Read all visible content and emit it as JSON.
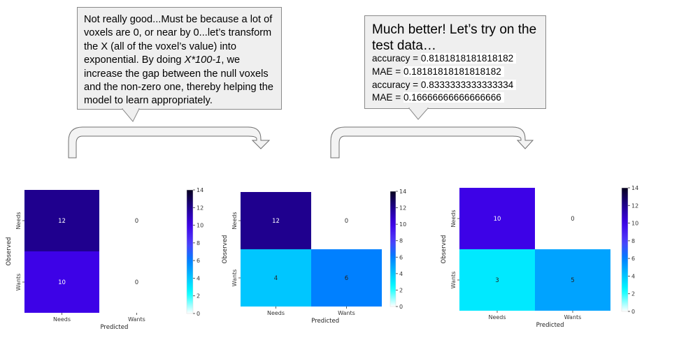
{
  "notes": {
    "note1": {
      "before": "Not really good...Must be because a lot of voxels are 0, or near by 0...let’s transform the X (all of the voxel’s value) into exponential. By doing ",
      "formula": "X*100-1",
      "after": ",  we increase the gap between the null voxels and the non-zero one, thereby helping the model to learn appropriately."
    },
    "note2": {
      "heading": "Much better! Let’s try on the test data…",
      "metrics": [
        {
          "label": "accuracy = ",
          "value": "0.8181818181818182"
        },
        {
          "label": "MAE = ",
          "value": "0.18181818181818182"
        },
        {
          "label": "accuracy = ",
          "value": "0.8333333333333334"
        },
        {
          "label": "MAE = ",
          "value": "0.16666666666666666"
        }
      ]
    }
  },
  "colors": {
    "callout_fill": "#efefef",
    "callout_border": "#8a8a8a",
    "arrow_fill": "#f3f3f3",
    "arrow_stroke": "#707070"
  },
  "chart_data": [
    {
      "type": "heatmap",
      "rows": [
        "Needs",
        "Wants"
      ],
      "cols": [
        "Needs",
        "Wants"
      ],
      "values": [
        [
          12,
          0
        ],
        [
          10,
          0
        ]
      ],
      "show_zero_fill": false,
      "xlabel": "Predicted",
      "ylabel": "Observed",
      "colorbar": {
        "min": 0,
        "max": 14,
        "ticks": [
          0,
          2,
          4,
          6,
          8,
          10,
          12,
          14
        ]
      }
    },
    {
      "type": "heatmap",
      "rows": [
        "Needs",
        "Wants"
      ],
      "cols": [
        "Needs",
        "Wants"
      ],
      "values": [
        [
          12,
          0
        ],
        [
          4,
          6
        ]
      ],
      "show_zero_fill": false,
      "xlabel": "Predicted",
      "ylabel": "Observed",
      "colorbar": {
        "min": 0,
        "max": 14,
        "ticks": [
          0,
          2,
          4,
          6,
          8,
          10,
          12,
          14
        ]
      }
    },
    {
      "type": "heatmap",
      "rows": [
        "Needs",
        "Wants"
      ],
      "cols": [
        "Needs",
        "Wants"
      ],
      "values": [
        [
          10,
          0
        ],
        [
          3,
          5
        ]
      ],
      "show_zero_fill": false,
      "xlabel": "Predicted",
      "ylabel": "Observed",
      "colorbar": {
        "min": 0,
        "max": 14,
        "ticks": [
          0,
          2,
          4,
          6,
          8,
          10,
          12,
          14
        ]
      }
    }
  ]
}
